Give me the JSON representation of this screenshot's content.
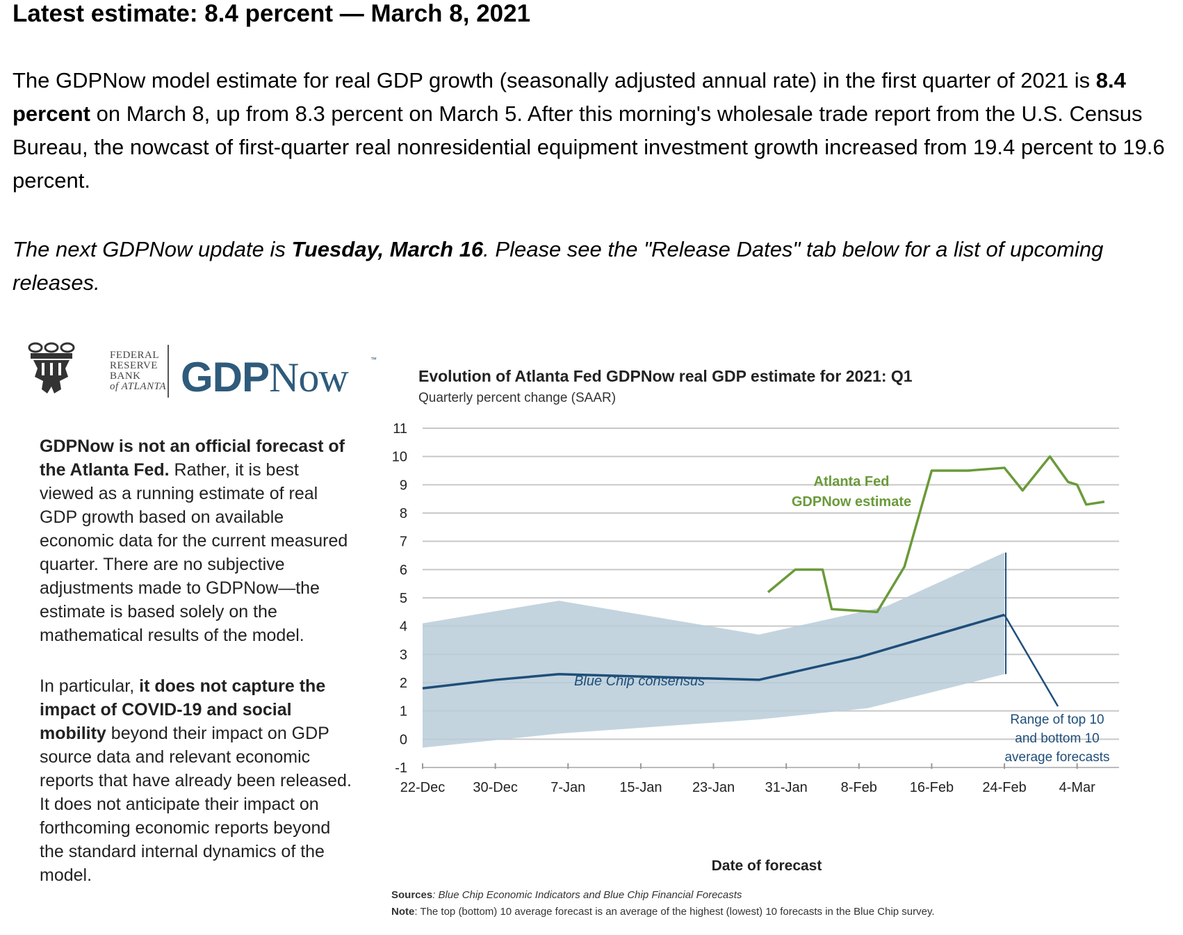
{
  "page": {
    "headline": "Latest estimate: 8.4 percent — March 8, 2021",
    "para1": {
      "t1": "The GDPNow model estimate for real GDP growth (seasonally adjusted annual rate) in the first quarter of 2021 is ",
      "b1": "8.4 percent",
      "t2": " on March 8, up from 8.3 percent on March 5. After this morning's wholesale trade report from the U.S. Census Bureau, the nowcast of first-quarter real nonresidential equipment investment growth increased from 19.4 percent to 19.6 percent."
    },
    "para2": {
      "t1": "The next GDPNow update is ",
      "b1": "Tuesday, March 16",
      "t2": ". Please see the \"Release Dates\" tab below for a list of upcoming releases."
    }
  },
  "sidebar": {
    "logo_seal_lines": [
      "FEDERAL",
      "RESERVE",
      "BANK",
      "of ATLANTA"
    ],
    "logo_brand_gdp": "GDP",
    "logo_brand_now": "Now",
    "logo_tm": "™",
    "p1_bold": "GDPNow is not an official forecast of the Atlanta Fed.",
    "p1_rest": " Rather, it is best viewed as a running estimate of real GDP growth based on available economic data for the current measured quarter. There are no subjective adjustments made to GDPNow—the estimate is based solely on the mathematical results of the model.",
    "p2_start": "In particular, ",
    "p2_bold": "it does not capture the impact of COVID-19 and social mobility",
    "p2_rest": " beyond their impact on GDP source data and relevant economic reports that have already been released. It does not anticipate their impact on forthcoming economic reports beyond the standard internal dynamics of the model."
  },
  "colors": {
    "gdpnow": "#6a9a3a",
    "consensus": "#1f4e79",
    "range": "#b8ccd9",
    "grid": "#c8c8c8",
    "brand": "#2e5b7c"
  },
  "chart_data": {
    "type": "line",
    "title": "Evolution of Atlanta Fed GDPNow real GDP estimate for 2021: Q1",
    "subtitle": "Quarterly percent change (SAAR)",
    "xlabel": "Date of forecast",
    "ylim": [
      -1,
      11
    ],
    "yticks": [
      "11",
      "10",
      "9",
      "8",
      "7",
      "6",
      "5",
      "4",
      "3",
      "2",
      "1",
      "0",
      "-1"
    ],
    "xticks": [
      "22-Dec",
      "30-Dec",
      "7-Jan",
      "15-Jan",
      "23-Jan",
      "31-Jan",
      "8-Feb",
      "16-Feb",
      "24-Feb",
      "4-Mar"
    ],
    "x_domain_days": [
      0,
      76
    ],
    "series": [
      {
        "name": "Atlanta Fed GDPNow estimate",
        "label_lines": [
          "Atlanta Fed",
          "GDPNow estimate"
        ],
        "points": [
          [
            38,
            5.2
          ],
          [
            41,
            6.0
          ],
          [
            44,
            6.0
          ],
          [
            45,
            4.6
          ],
          [
            50,
            4.5
          ],
          [
            53,
            6.1
          ],
          [
            56,
            9.5
          ],
          [
            60,
            9.5
          ],
          [
            64,
            9.6
          ],
          [
            66,
            8.8
          ],
          [
            69,
            10.0
          ],
          [
            71,
            9.1
          ],
          [
            72,
            9.0
          ],
          [
            73,
            8.3
          ],
          [
            75,
            8.4
          ]
        ]
      },
      {
        "name": "Blue Chip consensus",
        "label_lines": [
          "Blue Chip consensus"
        ],
        "points": [
          [
            0,
            1.8
          ],
          [
            8,
            2.1
          ],
          [
            15,
            2.3
          ],
          [
            37,
            2.1
          ],
          [
            48,
            2.9
          ],
          [
            64,
            4.4
          ]
        ]
      }
    ],
    "range_band": {
      "name": "Range of top 10 and bottom 10 average forecasts",
      "label_lines": [
        "Range of top 10",
        "and bottom 10",
        "average forecasts"
      ],
      "top": [
        [
          0,
          4.1
        ],
        [
          15,
          4.9
        ],
        [
          37,
          3.7
        ],
        [
          51,
          4.7
        ],
        [
          64,
          6.6
        ]
      ],
      "bottom": [
        [
          0,
          -0.3
        ],
        [
          15,
          0.2
        ],
        [
          37,
          0.7
        ],
        [
          49,
          1.1
        ],
        [
          64,
          2.3
        ]
      ]
    },
    "sources_label": "Sources",
    "sources_text": ": Blue Chip Economic Indicators and Blue Chip Financial Forecasts",
    "note_label": "Note",
    "note_text": ": The top (bottom) 10 average forecast is an average of the highest (lowest) 10 forecasts in the Blue Chip survey."
  }
}
